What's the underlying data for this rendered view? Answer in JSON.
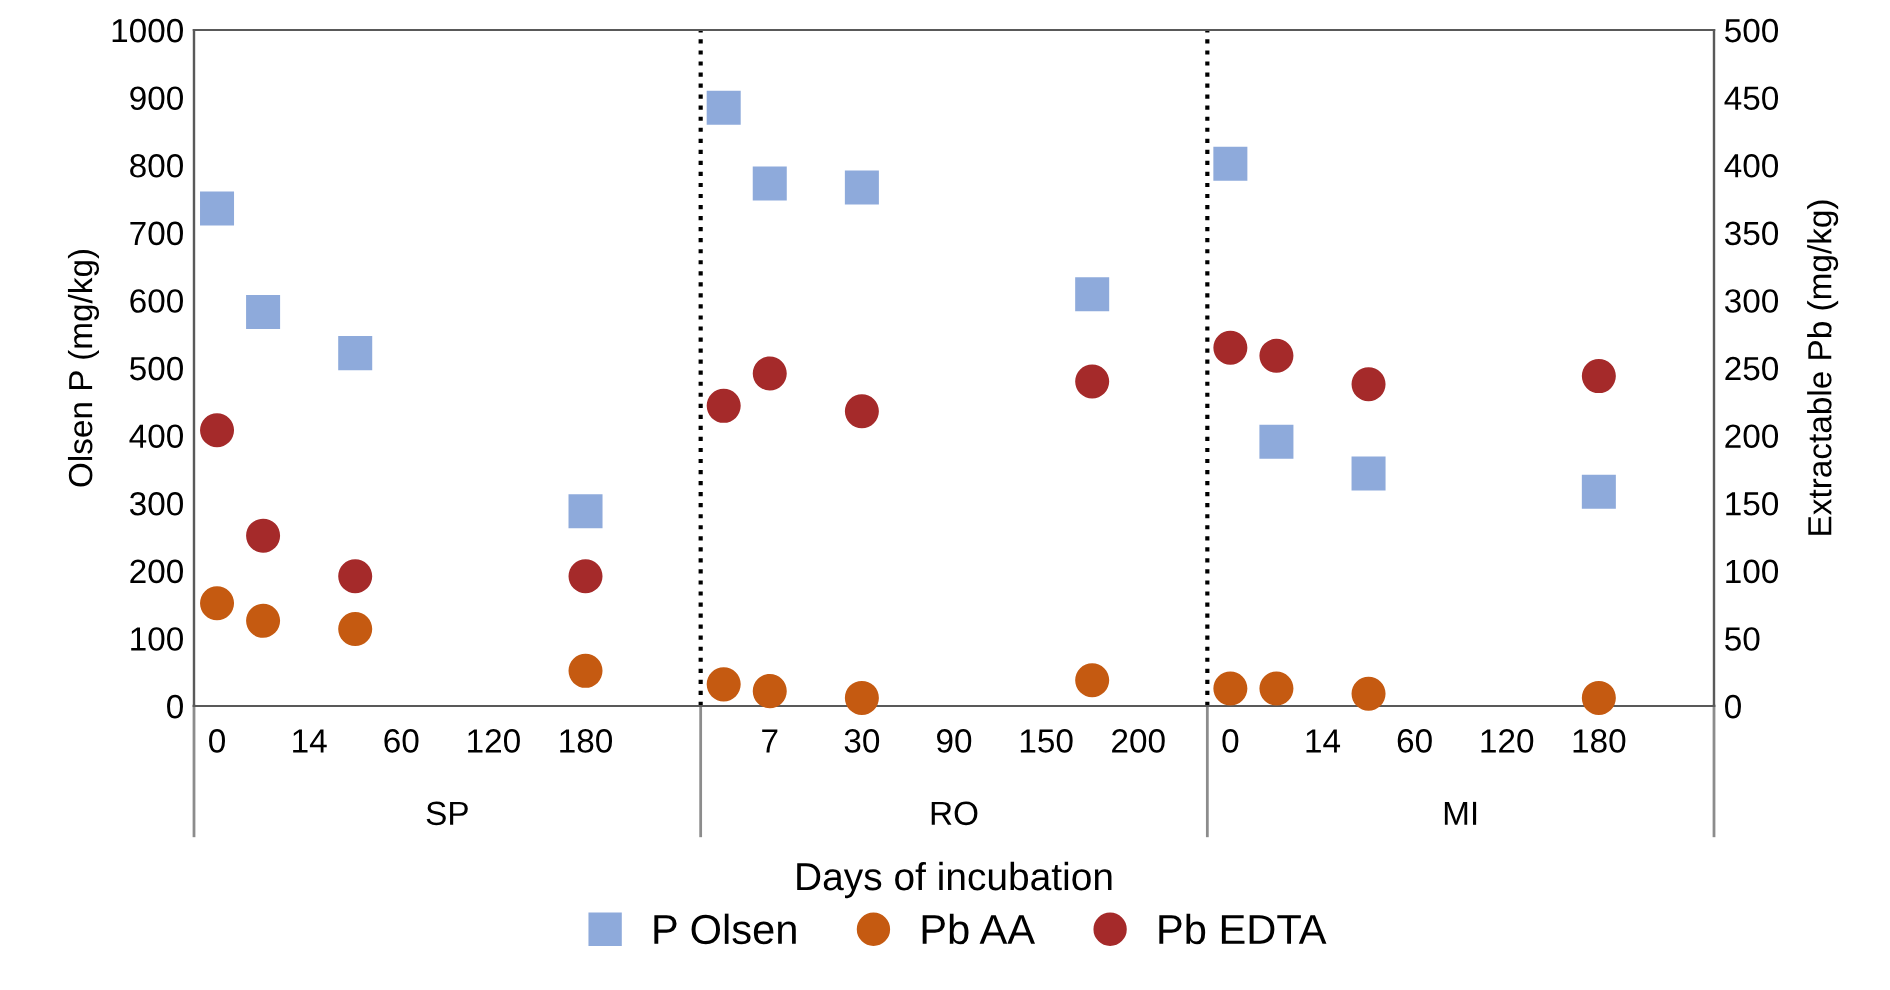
{
  "chart_data": {
    "type": "scatter",
    "xlabel": "Days of incubation",
    "ylabel": "Olsen P (mg/kg)",
    "y2label": "Extractable Pb (mg/kg)",
    "categories": [
      "0",
      null,
      "14",
      null,
      "60",
      null,
      "120",
      null,
      "180",
      null,
      null,
      null,
      "7",
      null,
      "30",
      null,
      "90",
      null,
      "150",
      null,
      "200",
      null,
      "0",
      null,
      "14",
      null,
      "60",
      null,
      "120",
      null,
      "180",
      null,
      null
    ],
    "annotations": [
      "SP",
      "RO",
      "MI"
    ],
    "series": [
      {
        "name": "P Olsen",
        "color": "#8eaadb",
        "marker": "square",
        "values": [
          736,
          583,
          null,
          522,
          null,
          null,
          null,
          null,
          288,
          null,
          null,
          885,
          773,
          null,
          767,
          null,
          null,
          null,
          null,
          609,
          null,
          null,
          802,
          391,
          null,
          344,
          null,
          null,
          null,
          null,
          317,
          null,
          null
        ]
      },
      {
        "name": "Pb AA",
        "color": "#c55a11",
        "marker": "circle",
        "axis": "y2",
        "values": [
          76,
          63,
          null,
          57,
          null,
          null,
          null,
          null,
          26,
          null,
          null,
          16,
          11,
          null,
          6,
          null,
          null,
          null,
          null,
          19,
          null,
          null,
          13,
          13,
          null,
          9,
          null,
          null,
          null,
          null,
          6,
          null,
          null
        ]
      },
      {
        "name": "Pb EDTA",
        "color": "#a52a2a",
        "marker": "circle",
        "axis": "y2",
        "values": [
          204,
          126,
          null,
          96,
          null,
          null,
          null,
          null,
          96,
          null,
          null,
          222,
          246,
          null,
          218,
          null,
          null,
          null,
          null,
          240,
          null,
          null,
          265,
          259,
          null,
          238,
          null,
          null,
          null,
          null,
          244,
          null,
          null
        ]
      }
    ],
    "ylim": [
      0,
      1000
    ],
    "yticks": [
      0,
      100,
      200,
      300,
      400,
      500,
      600,
      700,
      800,
      900,
      1000
    ],
    "y2lim": [
      0,
      500
    ],
    "y2ticks": [
      0,
      50,
      100,
      150,
      200,
      250,
      300,
      350,
      400,
      450,
      500
    ],
    "grid": false,
    "legend": "bottom"
  }
}
